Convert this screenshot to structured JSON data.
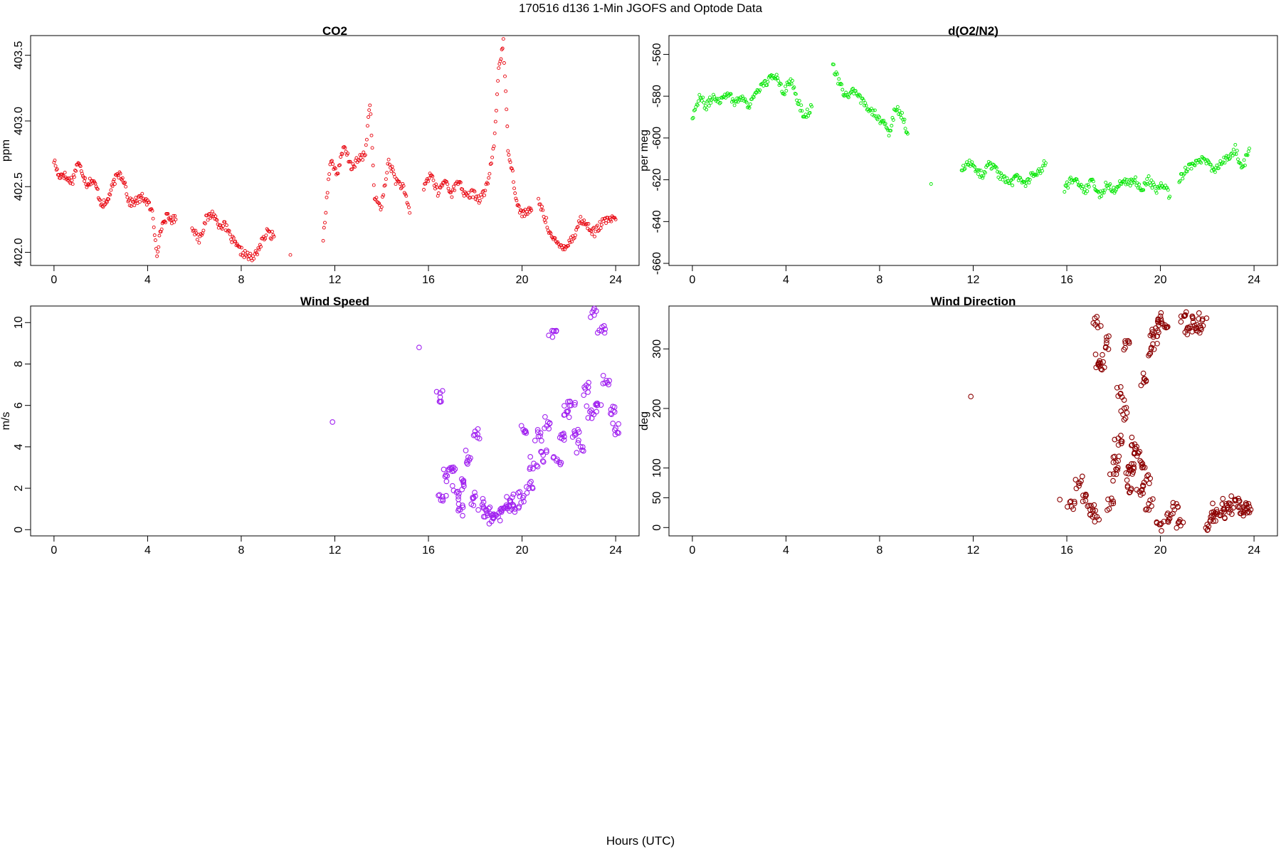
{
  "figure": {
    "title": "170516   d136   1-Min  JGOFS and Optode Data",
    "xlabel": "Hours (UTC)"
  },
  "chart_data": [
    {
      "type": "scatter",
      "title": "CO2",
      "xlabel": "",
      "ylabel": "ppm",
      "xlim": [
        -1,
        25
      ],
      "ylim": [
        401.9,
        403.65
      ],
      "xticks": [
        0,
        4,
        8,
        12,
        16,
        20,
        24
      ],
      "yticks": [
        402.0,
        402.5,
        403.0,
        403.5
      ],
      "ytick_labels": [
        "402.0",
        "402.5",
        "403.0",
        "403.5"
      ],
      "color": "#e8000b",
      "point_size": "small",
      "grid": false,
      "segments": [
        {
          "x": [
            0.0,
            0.2,
            0.4,
            0.6,
            0.8,
            1.0,
            1.2,
            1.4,
            1.6,
            1.8,
            2.0,
            2.2,
            2.4,
            2.6,
            2.8,
            3.0,
            3.2,
            3.4,
            3.6,
            3.8,
            4.0,
            4.2,
            4.4,
            4.6,
            4.8,
            5.0,
            5.2
          ],
          "y": [
            402.7,
            402.58,
            402.6,
            402.55,
            402.55,
            402.68,
            402.62,
            402.52,
            402.55,
            402.5,
            402.38,
            402.36,
            402.45,
            402.55,
            402.6,
            402.55,
            402.38,
            402.38,
            402.4,
            402.42,
            402.38,
            402.3,
            402.0,
            402.2,
            402.27,
            402.25,
            402.25
          ]
        },
        {
          "x": [
            5.9,
            6.2,
            6.5,
            6.8,
            7.0,
            7.3,
            7.6,
            7.9,
            8.2,
            8.5,
            8.8,
            9.1,
            9.4
          ],
          "y": [
            402.2,
            402.1,
            402.25,
            402.3,
            402.22,
            402.2,
            402.1,
            402.02,
            401.98,
            401.95,
            402.05,
            402.15,
            402.12
          ]
        },
        {
          "x": [
            10.1
          ],
          "y": [
            401.98
          ]
        },
        {
          "x": [
            11.5,
            11.8,
            12.1,
            12.4,
            12.7,
            13.0,
            13.3,
            13.5,
            13.7,
            14.0,
            14.3,
            14.6,
            14.9,
            15.2
          ],
          "y": [
            402.1,
            402.7,
            402.6,
            402.8,
            402.65,
            402.7,
            402.75,
            403.15,
            402.4,
            402.35,
            402.7,
            402.55,
            402.5,
            402.3
          ]
        },
        {
          "x": [
            15.8,
            16.1,
            16.4,
            16.7,
            17.0,
            17.3,
            17.6,
            17.9,
            18.2,
            18.5,
            18.8,
            19.0,
            19.2,
            19.4,
            19.6,
            19.8,
            20.0,
            20.2,
            20.4
          ],
          "y": [
            402.5,
            402.6,
            402.45,
            402.55,
            402.45,
            402.55,
            402.42,
            402.45,
            402.4,
            402.5,
            402.8,
            403.4,
            403.6,
            402.8,
            402.6,
            402.35,
            402.3,
            402.3,
            402.32
          ]
        },
        {
          "x": [
            20.7,
            21.0,
            21.3,
            21.6,
            21.9,
            22.2,
            22.5,
            22.8,
            23.1,
            23.4,
            23.7,
            24.0
          ],
          "y": [
            402.4,
            402.25,
            402.1,
            402.05,
            402.05,
            402.12,
            402.25,
            402.2,
            402.15,
            402.22,
            402.25,
            402.25
          ]
        }
      ]
    },
    {
      "type": "scatter",
      "title": "d(O2/N2)",
      "xlabel": "",
      "ylabel": "per meg",
      "xlim": [
        -1,
        25
      ],
      "ylim": [
        -661,
        -551
      ],
      "xticks": [
        0,
        4,
        8,
        12,
        16,
        20,
        24
      ],
      "yticks": [
        -660,
        -640,
        -620,
        -600,
        -580,
        -560
      ],
      "ytick_labels": [
        "-660",
        "-640",
        "-620",
        "-600",
        "-580",
        "-560"
      ],
      "color": "#00e600",
      "point_size": "small",
      "grid": false,
      "segments": [
        {
          "x": [
            0.0,
            0.3,
            0.6,
            0.9,
            1.2,
            1.5,
            1.8,
            2.1,
            2.4,
            2.7,
            3.0,
            3.3,
            3.6,
            3.9,
            4.2,
            4.5,
            4.8,
            5.1
          ],
          "y": [
            -590,
            -580,
            -585,
            -580,
            -582,
            -578,
            -583,
            -580,
            -585,
            -578,
            -575,
            -572,
            -570,
            -578,
            -572,
            -582,
            -590,
            -585
          ]
        },
        {
          "x": [
            6.0,
            6.3,
            6.6,
            6.9,
            7.2,
            7.5,
            7.8,
            8.1,
            8.4,
            8.7,
            9.0,
            9.2
          ],
          "y": [
            -565,
            -575,
            -580,
            -578,
            -582,
            -585,
            -588,
            -592,
            -598,
            -585,
            -590,
            -598
          ]
        },
        {
          "x": [
            10.2
          ],
          "y": [
            -622
          ]
        },
        {
          "x": [
            11.5,
            11.8,
            12.1,
            12.4,
            12.7,
            13.0,
            13.3,
            13.6,
            13.9,
            14.2,
            14.5,
            14.8,
            15.1
          ],
          "y": [
            -615,
            -612,
            -615,
            -618,
            -612,
            -616,
            -620,
            -622,
            -618,
            -622,
            -618,
            -616,
            -612
          ]
        },
        {
          "x": [
            15.9,
            16.2,
            16.5,
            16.8,
            17.1,
            17.4,
            17.7,
            18.0,
            18.3,
            18.6,
            18.9,
            19.2,
            19.5,
            19.8,
            20.1,
            20.4
          ],
          "y": [
            -625,
            -620,
            -622,
            -625,
            -620,
            -628,
            -622,
            -625,
            -620,
            -622,
            -620,
            -625,
            -620,
            -625,
            -622,
            -628
          ]
        },
        {
          "x": [
            20.8,
            21.1,
            21.4,
            21.7,
            22.0,
            22.3,
            22.6,
            22.9,
            23.2,
            23.5,
            23.8
          ],
          "y": [
            -620,
            -615,
            -612,
            -610,
            -612,
            -615,
            -612,
            -610,
            -605,
            -615,
            -605
          ]
        }
      ]
    },
    {
      "type": "scatter",
      "title": "Wind Speed",
      "xlabel": "",
      "ylabel": "m/s",
      "xlim": [
        -1,
        25
      ],
      "ylim": [
        -0.3,
        10.8
      ],
      "xticks": [
        0,
        4,
        8,
        12,
        16,
        20,
        24
      ],
      "yticks": [
        0,
        2,
        4,
        6,
        8,
        10
      ],
      "ytick_labels": [
        "0",
        "2",
        "4",
        "6",
        "8",
        "10"
      ],
      "color": "#a020f0",
      "point_size": "large",
      "grid": false,
      "x": [
        11.9,
        15.6,
        16.5,
        16.6,
        16.8,
        17.0,
        17.2,
        17.3,
        17.5,
        17.7,
        17.9,
        18.1,
        18.3,
        18.5,
        18.7,
        18.9,
        19.1,
        19.3,
        19.5,
        19.7,
        19.9,
        20.1,
        20.3,
        20.5,
        20.7,
        20.9,
        21.1,
        21.3,
        21.5,
        21.7,
        21.9,
        22.1,
        22.3,
        22.5,
        22.7,
        22.9,
        23.0,
        23.2,
        23.4,
        23.6,
        23.8,
        24.0
      ],
      "y": [
        5.2,
        8.8,
        6.4,
        1.6,
        2.6,
        3.0,
        1.8,
        1.0,
        2.2,
        3.5,
        1.5,
        4.6,
        1.2,
        0.8,
        0.4,
        0.7,
        0.9,
        1.1,
        1.4,
        1.0,
        1.6,
        4.7,
        2.0,
        3.2,
        4.5,
        3.6,
        5.2,
        9.3,
        3.4,
        4.4,
        5.7,
        6.0,
        4.6,
        4.0,
        6.8,
        5.7,
        10.5,
        6.0,
        9.6,
        7.2,
        5.8,
        4.9
      ]
    },
    {
      "type": "scatter",
      "title": "Wind Direction",
      "xlabel": "",
      "ylabel": "deg",
      "xlim": [
        -1,
        25
      ],
      "ylim": [
        -14,
        372
      ],
      "xticks": [
        0,
        4,
        8,
        12,
        16,
        20,
        24
      ],
      "yticks": [
        0,
        50,
        100,
        200,
        300
      ],
      "ytick_labels": [
        "0",
        "50",
        "100",
        "200",
        "300"
      ],
      "color": "#8b0000",
      "point_size": "large",
      "grid": false,
      "x": [
        11.9,
        15.7,
        16.2,
        16.5,
        16.8,
        17.0,
        17.2,
        17.3,
        17.4,
        17.5,
        17.7,
        17.9,
        18.0,
        18.1,
        18.2,
        18.3,
        18.4,
        18.5,
        18.6,
        18.7,
        18.8,
        18.9,
        19.0,
        19.1,
        19.2,
        19.3,
        19.4,
        19.5,
        19.6,
        19.7,
        19.8,
        19.9,
        20.0,
        20.2,
        20.4,
        20.6,
        20.8,
        21.0,
        21.2,
        21.4,
        21.6,
        21.8,
        22.0,
        22.2,
        22.4,
        22.6,
        22.8,
        23.0,
        23.2,
        23.4,
        23.6,
        23.8
      ],
      "y": [
        220,
        47,
        35,
        75,
        45,
        30,
        20,
        345,
        280,
        265,
        310,
        40,
        90,
        110,
        150,
        225,
        190,
        310,
        70,
        100,
        90,
        140,
        120,
        60,
        105,
        250,
        80,
        40,
        300,
        320,
        335,
        350,
        5,
        340,
        15,
        30,
        10,
        355,
        335,
        345,
        330,
        350,
        5,
        20,
        30,
        25,
        40,
        30,
        45,
        35,
        30,
        35
      ]
    }
  ]
}
